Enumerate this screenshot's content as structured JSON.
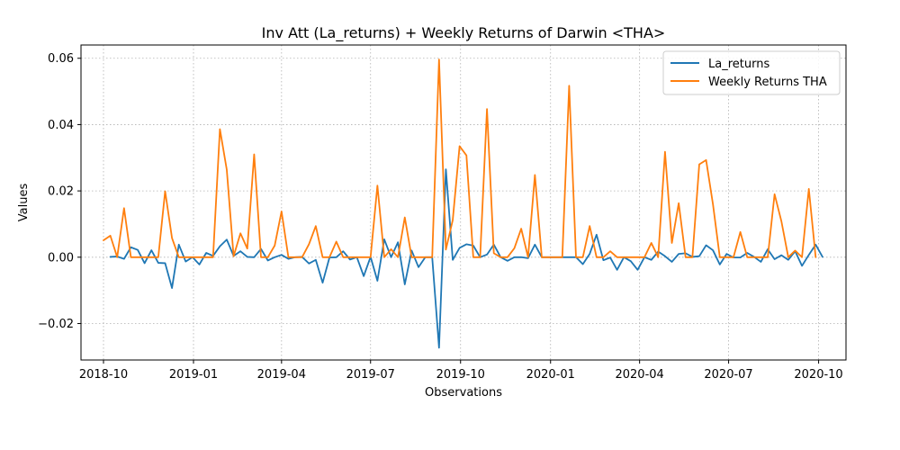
{
  "chart_data": {
    "type": "line",
    "title": "Inv Att (La_returns) + Weekly Returns of Darwin <THA>",
    "xlabel": "Observations",
    "ylabel": "Values",
    "x_axis": "date",
    "xlim": [
      "2018-09-08",
      "2020-10-29"
    ],
    "ylim": [
      -0.031,
      0.064
    ],
    "x_ticks": [
      "2018-10-01",
      "2019-01-01",
      "2019-04-01",
      "2019-07-01",
      "2019-10-01",
      "2020-01-01",
      "2020-04-01",
      "2020-07-01",
      "2020-10-01"
    ],
    "x_tick_labels": [
      "2018-10",
      "2019-01",
      "2019-04",
      "2019-07",
      "2019-10",
      "2020-01",
      "2020-04",
      "2020-07",
      "2020-10"
    ],
    "y_ticks": [
      -0.02,
      0.0,
      0.02,
      0.04,
      0.06
    ],
    "y_tick_labels": [
      "−0.02",
      "0.00",
      "0.02",
      "0.04",
      "0.06"
    ],
    "grid": true,
    "legend_position": "top-right",
    "series": [
      {
        "name": "La_returns",
        "color": "#1f77b4",
        "x": [
          "2018-10-08",
          "2018-10-15",
          "2018-10-22",
          "2018-10-29",
          "2018-11-05",
          "2018-11-12",
          "2018-11-19",
          "2018-11-26",
          "2018-12-03",
          "2018-12-10",
          "2018-12-17",
          "2018-12-24",
          "2018-12-31",
          "2019-01-07",
          "2019-01-14",
          "2019-01-21",
          "2019-01-28",
          "2019-02-04",
          "2019-02-11",
          "2019-02-18",
          "2019-02-25",
          "2019-03-04",
          "2019-03-11",
          "2019-03-18",
          "2019-03-25",
          "2019-04-01",
          "2019-04-08",
          "2019-04-15",
          "2019-04-22",
          "2019-04-29",
          "2019-05-06",
          "2019-05-13",
          "2019-05-20",
          "2019-05-27",
          "2019-06-03",
          "2019-06-10",
          "2019-06-17",
          "2019-06-24",
          "2019-07-01",
          "2019-07-08",
          "2019-07-15",
          "2019-07-22",
          "2019-07-29",
          "2019-08-05",
          "2019-08-12",
          "2019-08-19",
          "2019-08-26",
          "2019-09-02",
          "2019-09-09",
          "2019-09-16",
          "2019-09-23",
          "2019-09-30",
          "2019-10-07",
          "2019-10-14",
          "2019-10-21",
          "2019-10-28",
          "2019-11-04",
          "2019-11-11",
          "2019-11-18",
          "2019-11-25",
          "2019-12-02",
          "2019-12-09",
          "2019-12-16",
          "2019-12-23",
          "2019-12-30",
          "2020-01-06",
          "2020-01-13",
          "2020-01-20",
          "2020-01-27",
          "2020-02-03",
          "2020-02-10",
          "2020-02-17",
          "2020-02-24",
          "2020-03-02",
          "2020-03-09",
          "2020-03-16",
          "2020-03-23",
          "2020-03-30",
          "2020-04-06",
          "2020-04-13",
          "2020-04-20",
          "2020-04-27",
          "2020-05-04",
          "2020-05-11",
          "2020-05-18",
          "2020-05-25",
          "2020-06-01",
          "2020-06-08",
          "2020-06-15",
          "2020-06-22",
          "2020-06-29",
          "2020-07-06",
          "2020-07-13",
          "2020-07-20",
          "2020-07-27",
          "2020-08-03",
          "2020-08-10",
          "2020-08-17",
          "2020-08-24",
          "2020-08-31",
          "2020-09-07",
          "2020-09-14",
          "2020-09-21",
          "2020-09-28",
          "2020-10-05"
        ],
        "y": [
          0.0001,
          0.0002,
          -0.0005,
          0.003,
          0.0022,
          -0.0018,
          0.0021,
          -0.0017,
          -0.0018,
          -0.0093,
          0.0038,
          -0.0013,
          0.0,
          -0.0022,
          0.0013,
          0.0004,
          0.0033,
          0.0053,
          0.0004,
          0.0018,
          0.0001,
          0.0,
          0.0025,
          -0.001,
          0.0,
          0.0007,
          -0.0005,
          0.0,
          0.0001,
          -0.0019,
          -0.0008,
          -0.0077,
          -0.0001,
          0.0,
          0.0018,
          -0.0007,
          0.0,
          -0.0057,
          0.0001,
          -0.0071,
          0.0054,
          0.0,
          0.0045,
          -0.0082,
          0.002,
          -0.003,
          0.0,
          0.0,
          -0.0273,
          0.0265,
          -0.0008,
          0.0028,
          0.0039,
          0.0035,
          0.0,
          0.0008,
          0.0038,
          0.0,
          -0.0011,
          0.0,
          0.0,
          -0.0003,
          0.0038,
          0.0,
          0.0,
          0.0,
          0.0,
          0.0,
          0.0,
          -0.0021,
          0.001,
          0.0068,
          -0.0009,
          -0.0001,
          -0.0038,
          0.0,
          -0.0012,
          -0.0038,
          0.0,
          -0.0008,
          0.0017,
          0.0003,
          -0.0014,
          0.001,
          0.0012,
          0.0001,
          0.0003,
          0.0036,
          0.0021,
          -0.0022,
          0.001,
          -0.0001,
          -0.0001,
          0.0013,
          0.0001,
          -0.0014,
          0.0024,
          -0.0006,
          0.0006,
          -0.0008,
          0.0018,
          -0.0026,
          0.0007,
          0.0038,
          0.0001
        ]
      },
      {
        "name": "Weekly Returns THA",
        "color": "#ff7f0e",
        "x": [
          "2018-10-01",
          "2018-10-08",
          "2018-10-15",
          "2018-10-22",
          "2018-10-29",
          "2018-11-05",
          "2018-11-12",
          "2018-11-19",
          "2018-11-26",
          "2018-12-03",
          "2018-12-10",
          "2018-12-17",
          "2018-12-24",
          "2018-12-31",
          "2019-01-07",
          "2019-01-14",
          "2019-01-21",
          "2019-01-28",
          "2019-02-04",
          "2019-02-11",
          "2019-02-18",
          "2019-02-25",
          "2019-03-04",
          "2019-03-11",
          "2019-03-18",
          "2019-03-25",
          "2019-04-01",
          "2019-04-08",
          "2019-04-15",
          "2019-04-22",
          "2019-04-29",
          "2019-05-06",
          "2019-05-13",
          "2019-05-20",
          "2019-05-27",
          "2019-06-03",
          "2019-06-10",
          "2019-06-17",
          "2019-06-24",
          "2019-07-01",
          "2019-07-08",
          "2019-07-15",
          "2019-07-22",
          "2019-07-29",
          "2019-08-05",
          "2019-08-12",
          "2019-08-19",
          "2019-08-26",
          "2019-09-02",
          "2019-09-09",
          "2019-09-16",
          "2019-09-23",
          "2019-09-30",
          "2019-10-07",
          "2019-10-14",
          "2019-10-21",
          "2019-10-28",
          "2019-11-04",
          "2019-11-11",
          "2019-11-18",
          "2019-11-25",
          "2019-12-02",
          "2019-12-09",
          "2019-12-16",
          "2019-12-23",
          "2019-12-30",
          "2020-01-06",
          "2020-01-13",
          "2020-01-20",
          "2020-01-27",
          "2020-02-03",
          "2020-02-10",
          "2020-02-17",
          "2020-02-24",
          "2020-03-02",
          "2020-03-09",
          "2020-03-16",
          "2020-03-23",
          "2020-03-30",
          "2020-04-06",
          "2020-04-13",
          "2020-04-20",
          "2020-04-27",
          "2020-05-04",
          "2020-05-11",
          "2020-05-18",
          "2020-05-25",
          "2020-06-01",
          "2020-06-08",
          "2020-06-15",
          "2020-06-22",
          "2020-06-29",
          "2020-07-06",
          "2020-07-13",
          "2020-07-20",
          "2020-07-27",
          "2020-08-03",
          "2020-08-10",
          "2020-08-17",
          "2020-08-24",
          "2020-08-31",
          "2020-09-07",
          "2020-09-14",
          "2020-09-21",
          "2020-09-28"
        ],
        "y": [
          0.0051,
          0.0065,
          0.0,
          0.0148,
          0.0,
          0.0,
          0.0,
          0.0,
          0.0,
          0.0199,
          0.0058,
          0.0,
          0.0,
          0.0,
          0.0,
          0.0,
          0.0,
          0.0386,
          0.0264,
          0.0003,
          0.0072,
          0.0026,
          0.031,
          0.0,
          0.0,
          0.0035,
          0.0138,
          0.0,
          0.0,
          0.0,
          0.0039,
          0.0094,
          0.0,
          0.0,
          0.0047,
          0.0,
          0.0,
          0.0,
          0.0,
          0.0,
          0.0216,
          0.0,
          0.0024,
          0.0,
          0.012,
          0.0,
          0.0,
          0.0,
          0.0,
          0.0596,
          0.0023,
          0.0112,
          0.0335,
          0.0307,
          0.0,
          0.0,
          0.0447,
          0.0012,
          0.0,
          0.0,
          0.0027,
          0.0086,
          0.0,
          0.0248,
          0.0,
          0.0,
          0.0,
          0.0,
          0.0517,
          0.0,
          0.0,
          0.0094,
          0.0,
          0.0,
          0.0018,
          0.0,
          0.0,
          0.0,
          0.0,
          0.0,
          0.0043,
          0.0,
          0.0318,
          0.0043,
          0.0163,
          0.0,
          0.0,
          0.028,
          0.0293,
          0.016,
          0.0,
          0.0,
          0.0,
          0.0076,
          0.0,
          0.0,
          0.0,
          0.0,
          0.019,
          0.0108,
          0.0,
          0.002,
          0.0,
          0.0206,
          0.0
        ]
      }
    ]
  }
}
